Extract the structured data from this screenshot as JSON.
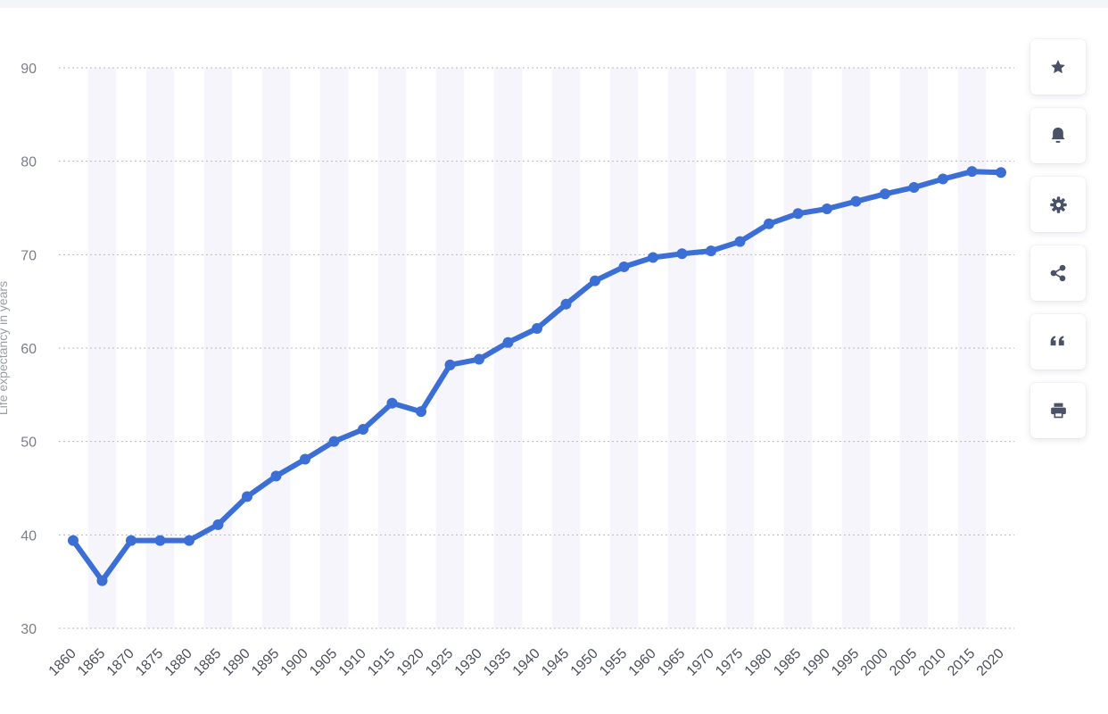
{
  "toolbar": {
    "buttons": [
      {
        "icon": "star-icon"
      },
      {
        "icon": "bell-icon"
      },
      {
        "icon": "gear-icon"
      },
      {
        "icon": "share-icon"
      },
      {
        "icon": "quote-icon"
      },
      {
        "icon": "print-icon"
      }
    ]
  },
  "colors": {
    "line": "#3b6fd6",
    "grid": "#b7bac2",
    "band": "#f6f5fb",
    "icon": "#4a5266"
  },
  "chart_data": {
    "type": "line",
    "title": "",
    "xlabel": "",
    "ylabel": "Life expectancy in years",
    "ylim": [
      30,
      90
    ],
    "yticks": [
      30,
      40,
      50,
      60,
      70,
      80,
      90
    ],
    "grid": true,
    "legend": "none",
    "x": [
      1860,
      1865,
      1870,
      1875,
      1880,
      1885,
      1890,
      1895,
      1900,
      1905,
      1910,
      1915,
      1920,
      1925,
      1930,
      1935,
      1940,
      1945,
      1950,
      1955,
      1960,
      1965,
      1970,
      1975,
      1980,
      1985,
      1990,
      1995,
      2000,
      2005,
      2010,
      2015,
      2020
    ],
    "series": [
      {
        "values": [
          39.4,
          35.1,
          39.4,
          39.4,
          39.4,
          41.1,
          44.1,
          46.3,
          48.1,
          50.0,
          51.3,
          54.1,
          53.2,
          58.2,
          58.8,
          60.6,
          62.1,
          64.7,
          67.2,
          68.7,
          69.7,
          70.1,
          70.4,
          71.4,
          73.3,
          74.4,
          74.9,
          75.7,
          76.5,
          77.2,
          78.1,
          78.9,
          78.8
        ]
      }
    ]
  }
}
